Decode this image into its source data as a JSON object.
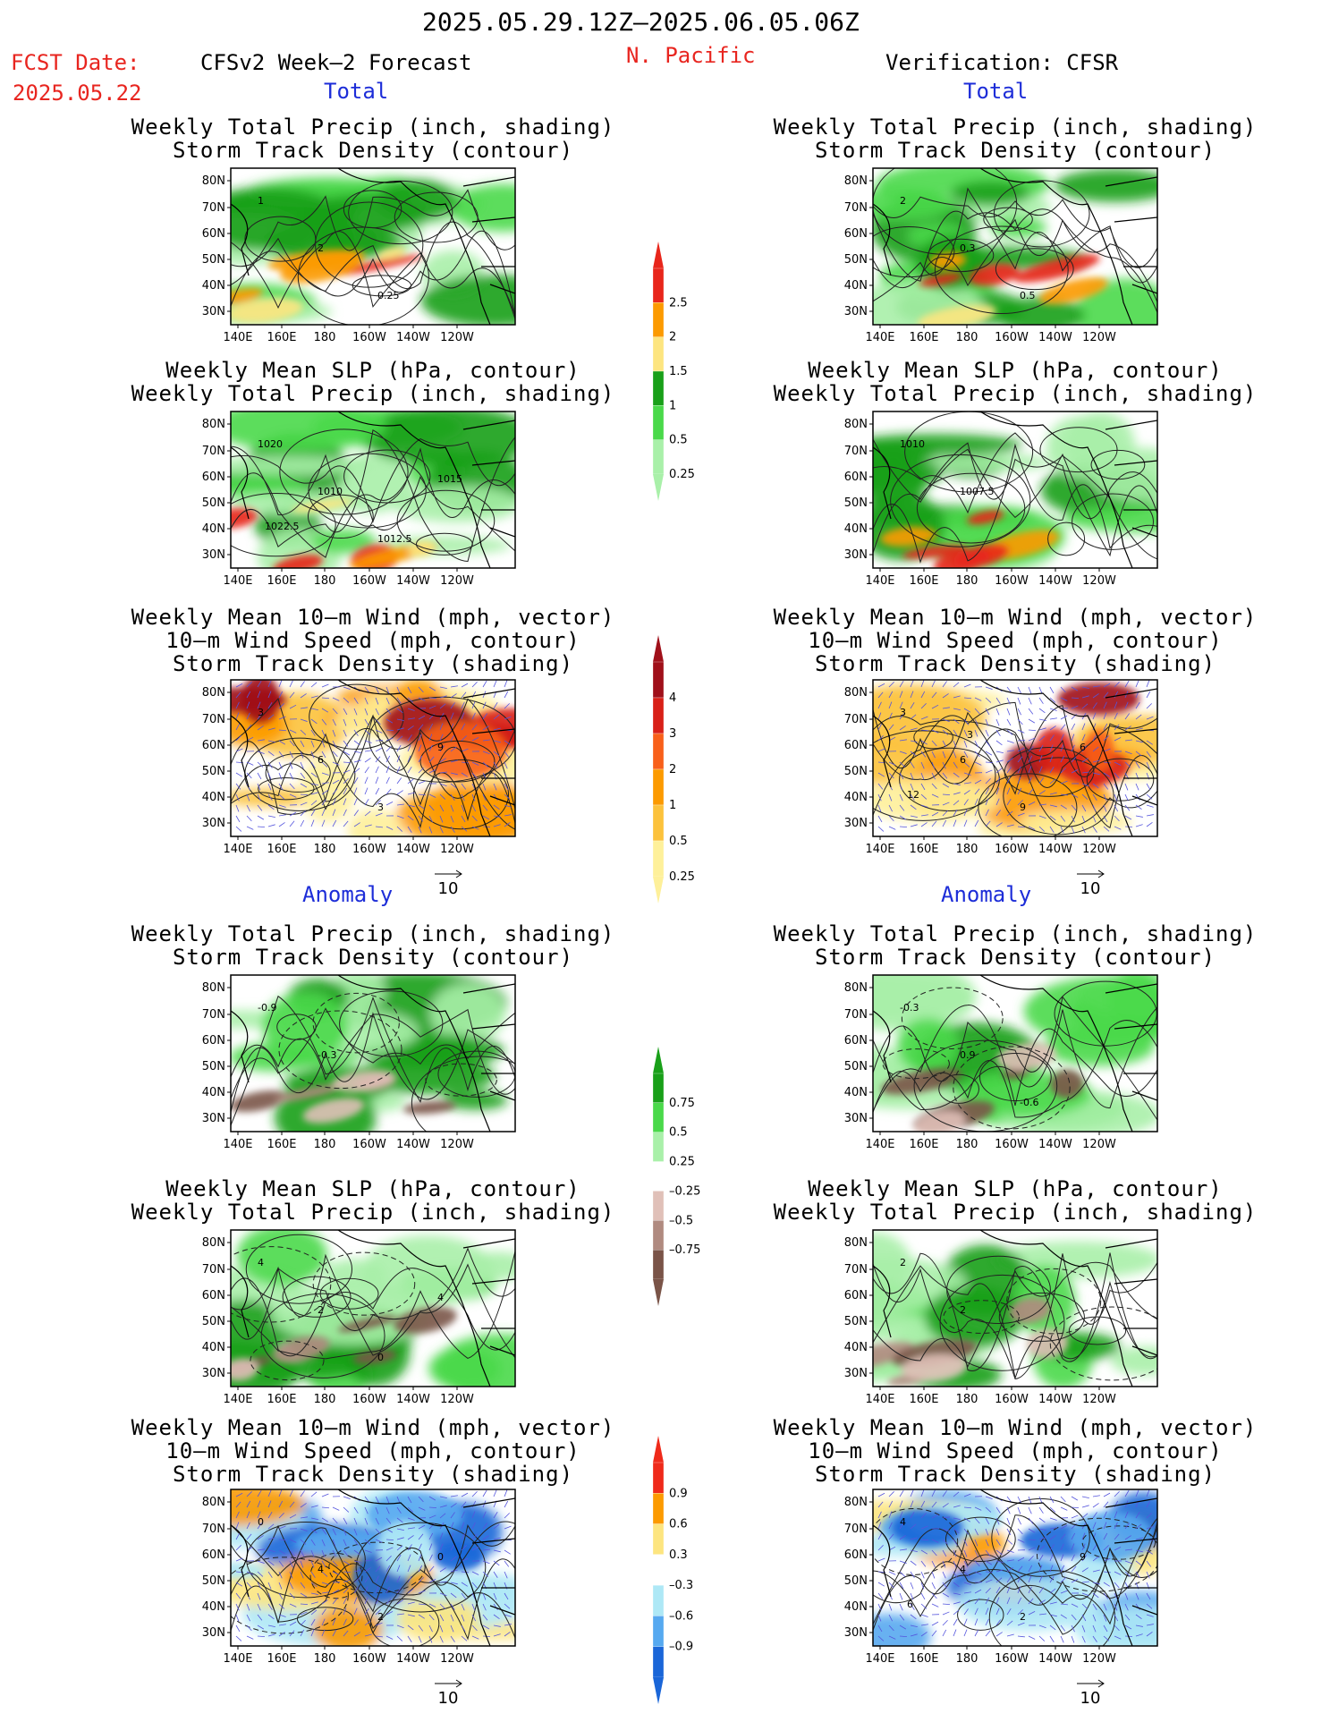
{
  "header": {
    "date_range": "2025.05.29.12Z–2025.06.05.06Z",
    "fcst_label": "FCST Date:",
    "fcst_date": "2025.05.22",
    "left_title": "CFSv2 Week–2 Forecast",
    "region": "N. Pacific",
    "right_title": "Verification: CFSR"
  },
  "sections": {
    "total": "Total",
    "anomaly": "Anomaly"
  },
  "panel_titles": {
    "precip_storm": [
      "Weekly Total Precip (inch, shading)",
      "Storm Track Density (contour)"
    ],
    "slp_precip": [
      "Weekly Mean SLP (hPa, contour)",
      "Weekly Total Precip (inch, shading)"
    ],
    "wind_storm": [
      "Weekly Mean 10–m Wind (mph, vector)",
      "10–m Wind Speed (mph, contour)",
      "Storm Track Density (shading)"
    ]
  },
  "axes": {
    "lat_ticks": [
      "80N",
      "70N",
      "60N",
      "50N",
      "40N",
      "30N"
    ],
    "lon_ticks": [
      "140E",
      "160E",
      "180",
      "160W",
      "140W",
      "120W"
    ]
  },
  "vector_ref": "10",
  "colorbars": {
    "precip_total": {
      "labels": [
        "2.5",
        "2",
        "1.5",
        "1",
        "0.5",
        "0.25"
      ],
      "colors": [
        "#e8261b",
        "#fc9a00",
        "#fde580",
        "#19a019",
        "#4ad94a",
        "#a9f0a9"
      ]
    },
    "storm_total": {
      "labels": [
        "4",
        "3",
        "2",
        "1",
        "0.5",
        "0.25"
      ],
      "colors": [
        "#a0101a",
        "#d82018",
        "#f8601a",
        "#fc9a00",
        "#fcc23c",
        "#fef09a"
      ]
    },
    "precip_anom": {
      "labels": [
        "0.75",
        "0.5",
        "0.25",
        "–0.25",
        "–0.5",
        "–0.75"
      ],
      "colors": [
        "#19a019",
        "#4ad94a",
        "#a9f0a9",
        "#ffffff",
        "#e0c0b8",
        "#b08a80",
        "#7a5448"
      ]
    },
    "storm_anom": {
      "labels": [
        "0.9",
        "0.6",
        "0.3",
        "–0.3",
        "–0.6",
        "–0.9"
      ],
      "colors": [
        "#ef2a1a",
        "#fc9a00",
        "#fde580",
        "#ffffff",
        "#aee8f6",
        "#56a9f0",
        "#1a66d8"
      ]
    }
  },
  "contour_labels": {
    "fc_t1": [
      "1",
      "2",
      "0.25"
    ],
    "fc_t2": [
      "1020",
      "1010",
      "1012.5",
      "1015",
      "1022.5"
    ],
    "fc_t3": [
      "3",
      "6",
      "3",
      "9"
    ],
    "vf_t1": [
      "2",
      "0.3",
      "0.5"
    ],
    "vf_t2": [
      "1010",
      "1007.5"
    ],
    "vf_t3": [
      "3",
      "6",
      "9",
      "6",
      "12",
      "3"
    ],
    "fc_a1": [
      "-0.9",
      "-0.3"
    ],
    "fc_a2": [
      "4",
      "2",
      "0",
      "4"
    ],
    "fc_a3": [
      "0",
      "4",
      "2",
      "0"
    ],
    "vf_a1": [
      "-0.3",
      "0.9",
      "-0.6"
    ],
    "vf_a2": [
      "2",
      "2"
    ],
    "vf_a3": [
      "4",
      "4",
      "2",
      "9",
      "6"
    ]
  }
}
